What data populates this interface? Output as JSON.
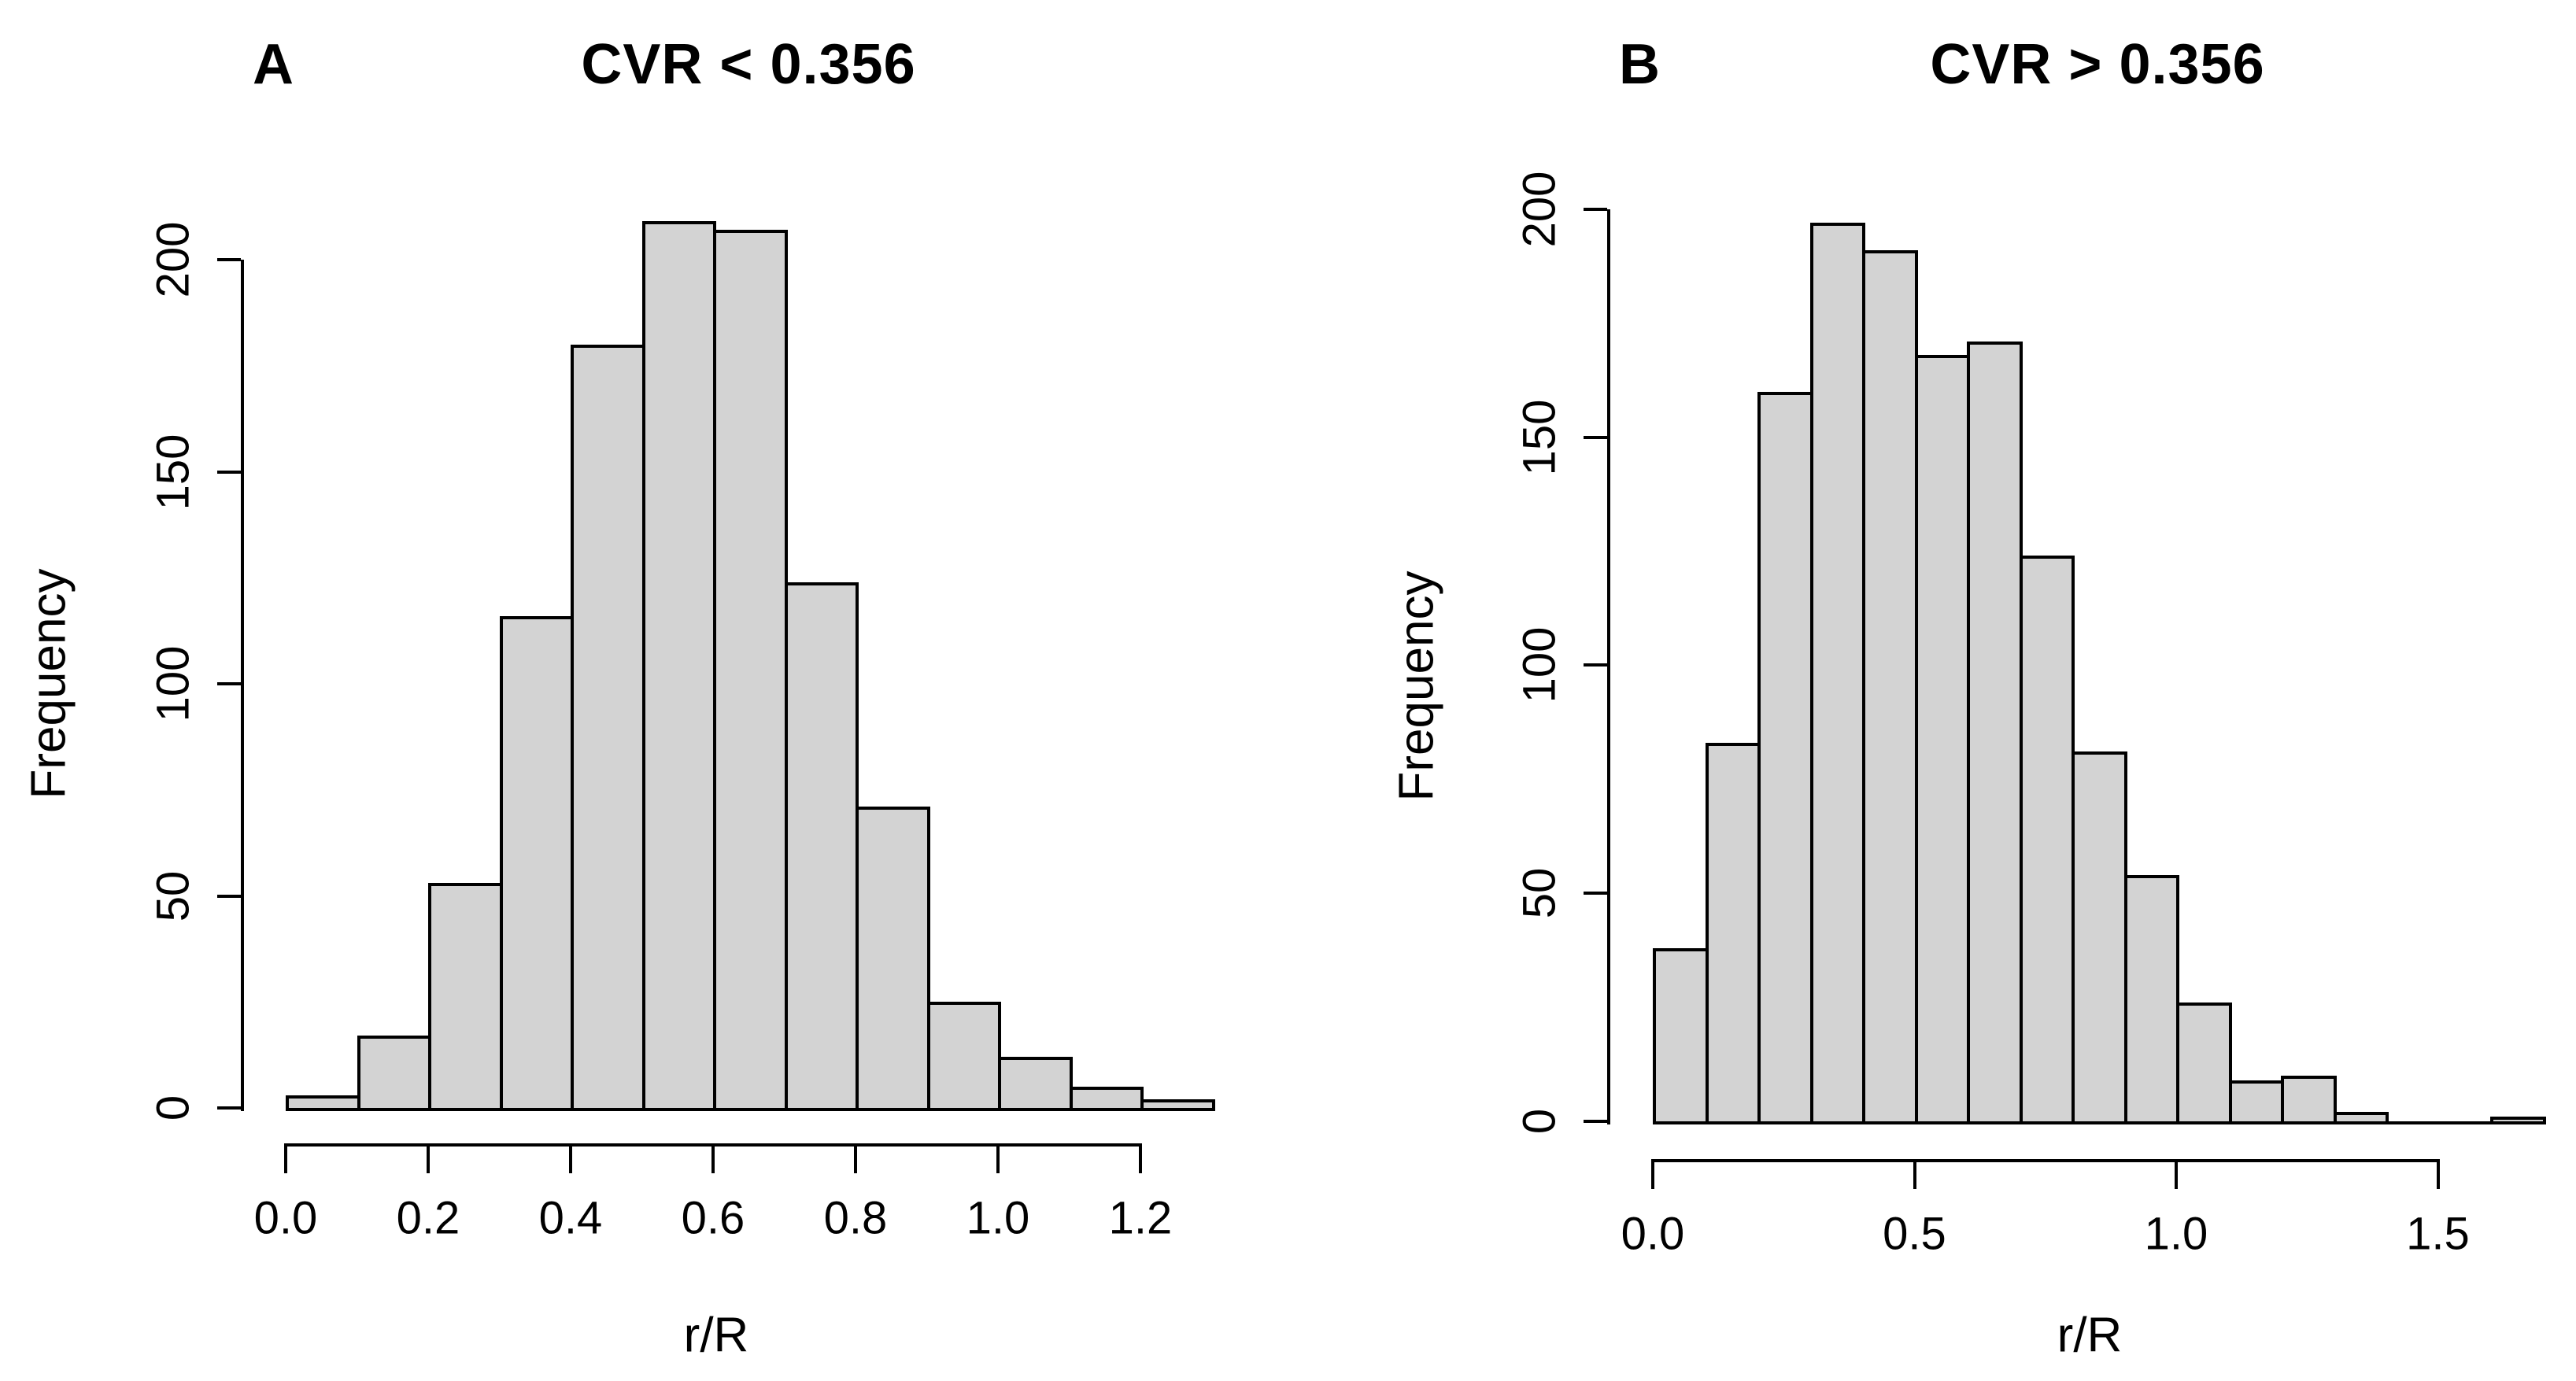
{
  "figure": {
    "background": "#ffffff",
    "bar_fill": "#d3d3d3",
    "bar_border": "#000000",
    "text_color": "#000000"
  },
  "chart_data": [
    {
      "type": "bar",
      "subtype": "histogram",
      "panel_letter": "A",
      "title": "CVR < 0.356",
      "xlabel": "r/R",
      "ylabel": "Frequency",
      "bin_start": 0.0,
      "bin_width": 0.1,
      "categories": [
        "0.0-0.1",
        "0.1-0.2",
        "0.2-0.3",
        "0.3-0.4",
        "0.4-0.5",
        "0.5-0.6",
        "0.6-0.7",
        "0.7-0.8",
        "0.8-0.9",
        "0.9-1.0",
        "1.0-1.1",
        "1.1-1.2",
        "1.2-1.3"
      ],
      "values": [
        3,
        17,
        53,
        116,
        180,
        209,
        207,
        124,
        71,
        25,
        12,
        5,
        2
      ],
      "x_ticks": [
        0.0,
        0.2,
        0.4,
        0.6,
        0.8,
        1.0,
        1.2
      ],
      "x_tick_labels": [
        "0.0",
        "0.2",
        "0.4",
        "0.6",
        "0.8",
        "1.0",
        "1.2"
      ],
      "y_ticks": [
        0,
        50,
        100,
        150,
        200
      ],
      "y_tick_labels": [
        "0",
        "50",
        "100",
        "150",
        "200"
      ],
      "xlim": [
        0.0,
        1.3
      ],
      "ylim": [
        0,
        210
      ],
      "grid": false,
      "legend": null
    },
    {
      "type": "bar",
      "subtype": "histogram",
      "panel_letter": "B",
      "title": "CVR > 0.356",
      "xlabel": "r/R",
      "ylabel": "Frequency",
      "bin_start": 0.0,
      "bin_width": 0.1,
      "categories": [
        "0.0-0.1",
        "0.1-0.2",
        "0.2-0.3",
        "0.3-0.4",
        "0.4-0.5",
        "0.5-0.6",
        "0.6-0.7",
        "0.7-0.8",
        "0.8-0.9",
        "0.9-1.0",
        "1.0-1.1",
        "1.1-1.2",
        "1.2-1.3",
        "1.3-1.4",
        "1.4-1.5",
        "1.5-1.6",
        "1.6-1.7"
      ],
      "values": [
        38,
        83,
        160,
        197,
        191,
        168,
        171,
        124,
        81,
        54,
        26,
        9,
        10,
        2,
        0,
        0,
        1
      ],
      "x_ticks": [
        0.0,
        0.5,
        1.0,
        1.5
      ],
      "x_tick_labels": [
        "0.0",
        "0.5",
        "1.0",
        "1.5"
      ],
      "y_ticks": [
        0,
        50,
        100,
        150,
        200
      ],
      "y_tick_labels": [
        "0",
        "50",
        "100",
        "150",
        "200"
      ],
      "xlim": [
        0.0,
        1.7
      ],
      "ylim": [
        0,
        200
      ],
      "grid": false,
      "legend": null
    }
  ]
}
